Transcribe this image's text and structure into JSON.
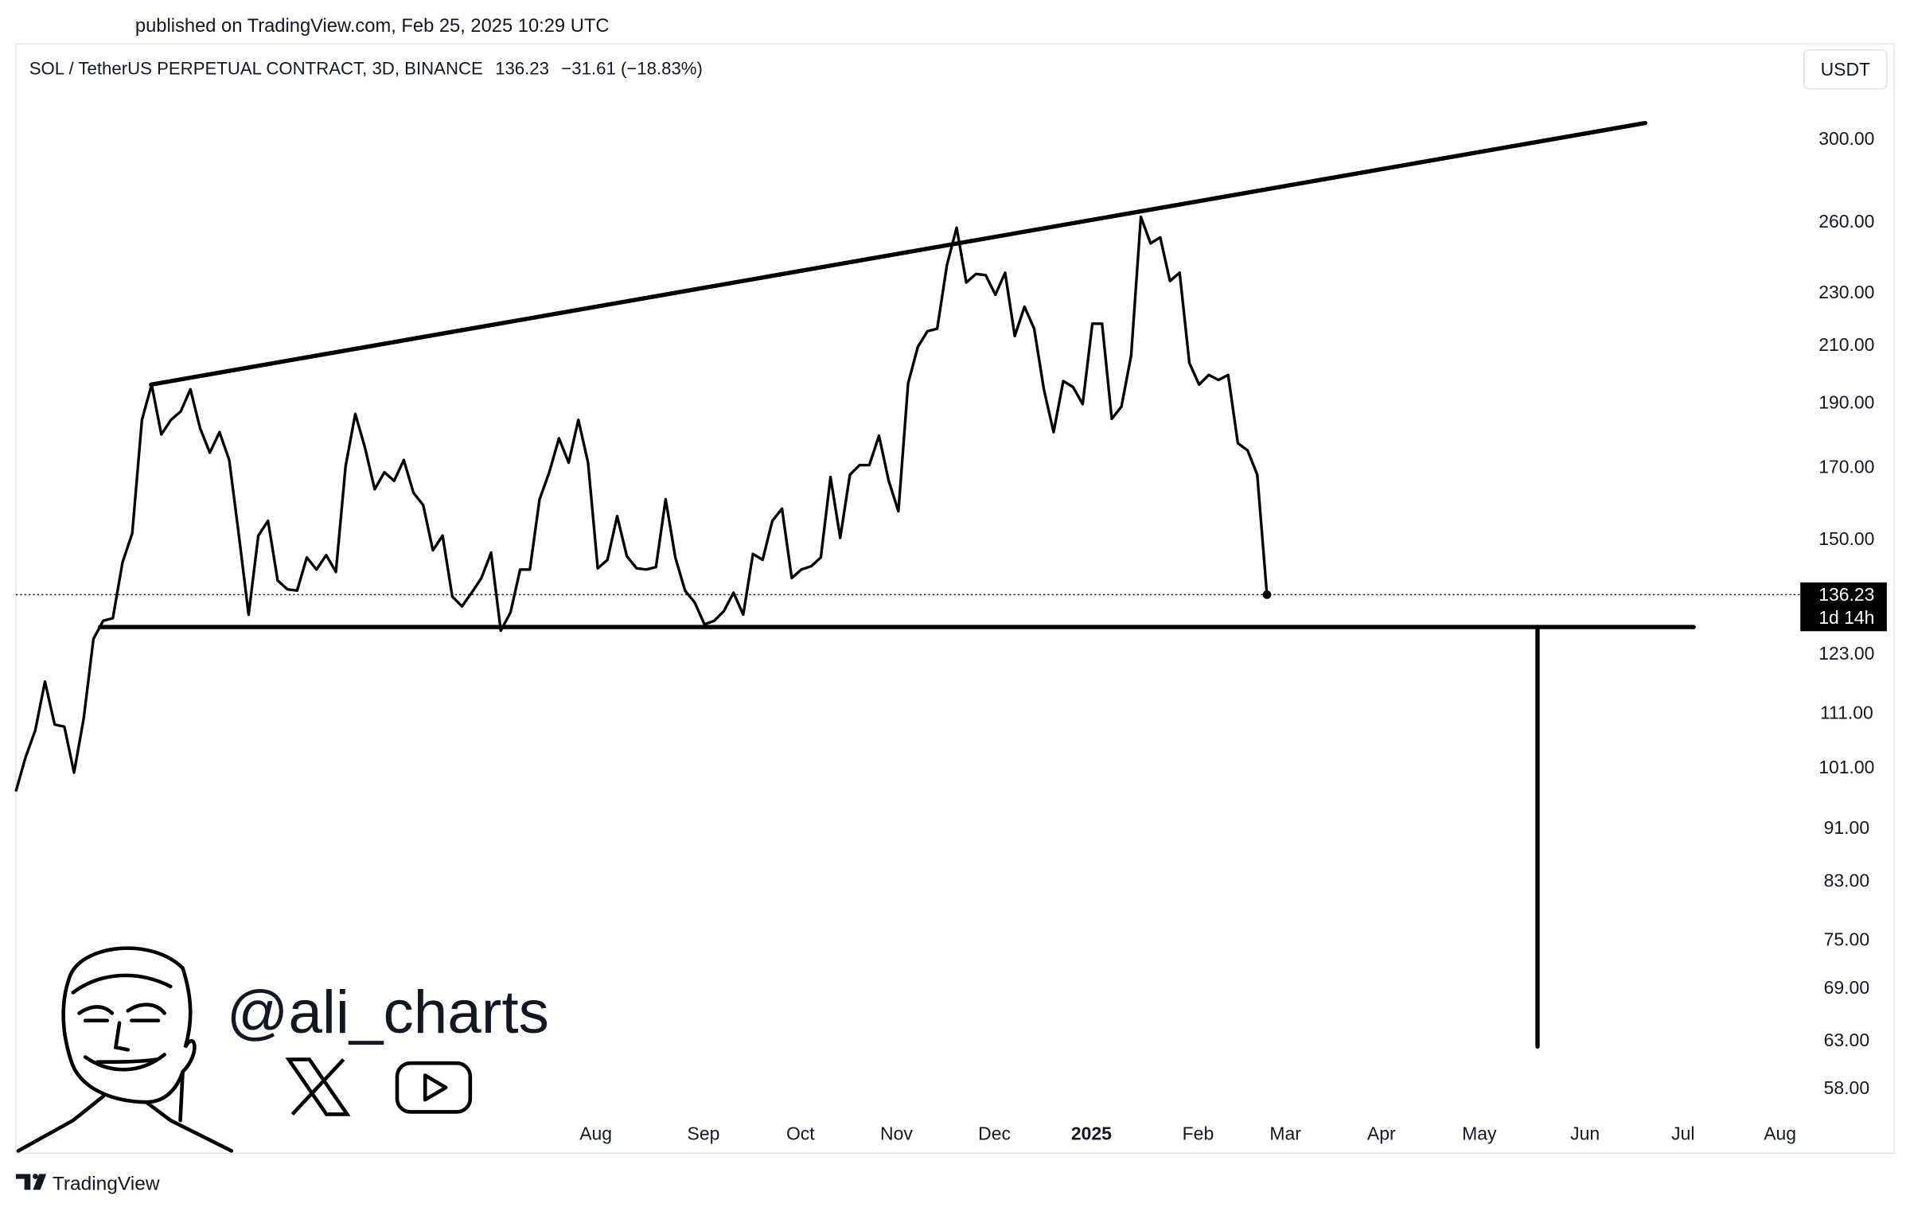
{
  "header": {
    "published": "published on TradingView.com, Feb 25, 2025 10:29 UTC"
  },
  "chart_data": {
    "type": "line",
    "title": "SOL / TetherUS PERPETUAL CONTRACT, 3D, BINANCE",
    "change": "−31.61 (−18.83%)",
    "currency": "USDT",
    "countdown": "1d 14h",
    "log_scale": true,
    "last_price_line": true,
    "series": [
      {
        "color": "#000000",
        "values": [
          96.9,
          102.8,
          107.7,
          117.2,
          108.8,
          108.4,
          100.1,
          110.0,
          126.2,
          130.2,
          130.8,
          144.1,
          151.5,
          184.4,
          196.0,
          179.8,
          184.4,
          187.1,
          194.4,
          181.7,
          174.2,
          180.5,
          172.0,
          150.9,
          131.6,
          150.9,
          154.8,
          139.6,
          137.5,
          137.2,
          145.3,
          142.3,
          145.9,
          141.7,
          170.2,
          186.3,
          175.7,
          163.5,
          168.4,
          165.9,
          172.0,
          162.5,
          159.1,
          147.1,
          150.9,
          135.8,
          133.5,
          136.7,
          140.2,
          146.5,
          128.0,
          132.1,
          142.3,
          142.3,
          160.7,
          168.4,
          178.6,
          171.2,
          184.4,
          171.2,
          142.6,
          144.7,
          156.1,
          145.6,
          142.6,
          142.3,
          142.9,
          160.7,
          145.3,
          137.2,
          134.4,
          129.4,
          130.2,
          132.4,
          136.7,
          131.6,
          146.2,
          144.7,
          154.8,
          158.1,
          140.2,
          142.3,
          143.1,
          145.3,
          167.0,
          150.3,
          167.7,
          170.5,
          170.5,
          179.4,
          165.9,
          157.4,
          196.4,
          209.2,
          215.0,
          215.9,
          241.0,
          257.2,
          233.9,
          237.4,
          236.9,
          229.0,
          237.9,
          213.2,
          224.3,
          215.9,
          194.4,
          180.5,
          197.2,
          195.2,
          189.5,
          217.8,
          217.8,
          184.7,
          188.7,
          206.2,
          262.1,
          250.3,
          252.9,
          234.5,
          237.9,
          203.5,
          196.0,
          199.3,
          197.6,
          199.3,
          177.1,
          174.9,
          167.7,
          136.23
        ]
      }
    ],
    "xlim": [
      0,
      184
    ],
    "xticks": [
      {
        "value": 59.8,
        "label": "Aug"
      },
      {
        "value": 70.9,
        "label": "Sep"
      },
      {
        "value": 80.9,
        "label": "Oct"
      },
      {
        "value": 90.8,
        "label": "Nov"
      },
      {
        "value": 100.9,
        "label": "Dec"
      },
      {
        "value": 110.9,
        "label": "2025"
      },
      {
        "value": 121.9,
        "label": "Feb"
      },
      {
        "value": 130.9,
        "label": "Mar"
      },
      {
        "value": 140.8,
        "label": "Apr"
      },
      {
        "value": 150.9,
        "label": "May"
      },
      {
        "value": 161.8,
        "label": "Jun"
      },
      {
        "value": 171.9,
        "label": "Jul"
      },
      {
        "value": 181.9,
        "label": "Aug"
      }
    ],
    "ylim": [
      55.4,
      353.6
    ],
    "yticks": [
      {
        "value": 58,
        "label": "58.00"
      },
      {
        "value": 63,
        "label": "63.00"
      },
      {
        "value": 69,
        "label": "69.00"
      },
      {
        "value": 75,
        "label": "75.00"
      },
      {
        "value": 83,
        "label": "83.00"
      },
      {
        "value": 91,
        "label": "91.00"
      },
      {
        "value": 101,
        "label": "101.00"
      },
      {
        "value": 111,
        "label": "111.00"
      },
      {
        "value": 123,
        "label": "123.00"
      },
      {
        "value": 150,
        "label": "150.00"
      },
      {
        "value": 170,
        "label": "170.00"
      },
      {
        "value": 190,
        "label": "190.00"
      },
      {
        "value": 210,
        "label": "210.00"
      },
      {
        "value": 230,
        "label": "230.00"
      },
      {
        "value": 260,
        "label": "260.00"
      },
      {
        "value": 300,
        "label": "300.00"
      }
    ],
    "drawings": [
      {
        "x": [
          13.94,
          168.0
        ],
        "y": [
          196.0,
          308.3
        ]
      },
      {
        "x": [
          8.67,
          173.0
        ],
        "y": [
          128.8,
          128.8
        ]
      },
      {
        "x": [
          156.9,
          156.9
        ],
        "y": [
          128.4,
          62.3
        ]
      }
    ]
  },
  "watermark": {
    "handle": "@ali_charts"
  },
  "footer": {
    "brand": "TradingView"
  }
}
